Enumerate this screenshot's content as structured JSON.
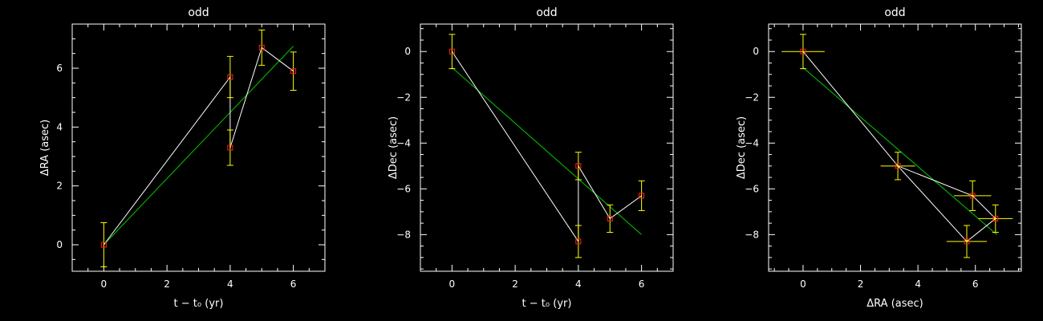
{
  "colors": {
    "background": "#000000",
    "axes": "#ffffff",
    "data_line": "#ffffff",
    "fit_line": "#00c800",
    "marker": "#ff2020",
    "error_bar": "#ffff00"
  },
  "chart_data": [
    {
      "type": "scatter",
      "title": "odd",
      "xlabel": "t − t₀ (yr)",
      "ylabel": "ΔRA (asec)",
      "xlim": [
        -1,
        7
      ],
      "ylim": [
        -0.9,
        7.5
      ],
      "xticks": [
        0,
        2,
        4,
        6
      ],
      "yticks": [
        0,
        2,
        4,
        6
      ],
      "points": [
        {
          "x": 0,
          "y": 0,
          "yerr": 0.75
        },
        {
          "x": 4,
          "y": 5.7,
          "yerr": 0.7
        },
        {
          "x": 4,
          "y": 3.3,
          "yerr": 0.6
        },
        {
          "x": 5,
          "y": 6.7,
          "yerr": 0.6
        },
        {
          "x": 6,
          "y": 5.9,
          "yerr": 0.65
        }
      ],
      "fit": [
        [
          0,
          0.0
        ],
        [
          6,
          6.75
        ]
      ]
    },
    {
      "type": "scatter",
      "title": "odd",
      "xlabel": "t − t₀ (yr)",
      "ylabel": "ΔDec (asec)",
      "xlim": [
        -1,
        7
      ],
      "ylim": [
        -9.6,
        1.2
      ],
      "xticks": [
        0,
        2,
        4,
        6
      ],
      "yticks": [
        0,
        -2,
        -4,
        -6,
        -8
      ],
      "points": [
        {
          "x": 0,
          "y": 0,
          "yerr": 0.75
        },
        {
          "x": 4,
          "y": -8.3,
          "yerr": 0.7
        },
        {
          "x": 4,
          "y": -5.0,
          "yerr": 0.6
        },
        {
          "x": 5,
          "y": -7.3,
          "yerr": 0.6
        },
        {
          "x": 6,
          "y": -6.3,
          "yerr": 0.65
        }
      ],
      "fit": [
        [
          0,
          -0.7
        ],
        [
          6,
          -8.0
        ]
      ]
    },
    {
      "type": "scatter",
      "title": "odd",
      "xlabel": "ΔRA (asec)",
      "ylabel": "ΔDec (asec)",
      "xlim": [
        -1.2,
        7.6
      ],
      "ylim": [
        -9.6,
        1.2
      ],
      "xticks": [
        0,
        2,
        4,
        6
      ],
      "yticks": [
        0,
        -2,
        -4,
        -6,
        -8
      ],
      "points": [
        {
          "x": 0,
          "y": 0,
          "xerr": 0.75,
          "yerr": 0.75
        },
        {
          "x": 3.3,
          "y": -5.0,
          "xerr": 0.6,
          "yerr": 0.6
        },
        {
          "x": 5.7,
          "y": -8.3,
          "xerr": 0.7,
          "yerr": 0.7
        },
        {
          "x": 6.7,
          "y": -7.3,
          "xerr": 0.6,
          "yerr": 0.6
        },
        {
          "x": 5.9,
          "y": -6.3,
          "xerr": 0.65,
          "yerr": 0.65
        }
      ],
      "path_order": [
        0,
        1,
        2,
        3,
        4,
        1
      ],
      "fit": [
        [
          0,
          -0.7
        ],
        [
          6.75,
          -8.0
        ]
      ]
    }
  ]
}
